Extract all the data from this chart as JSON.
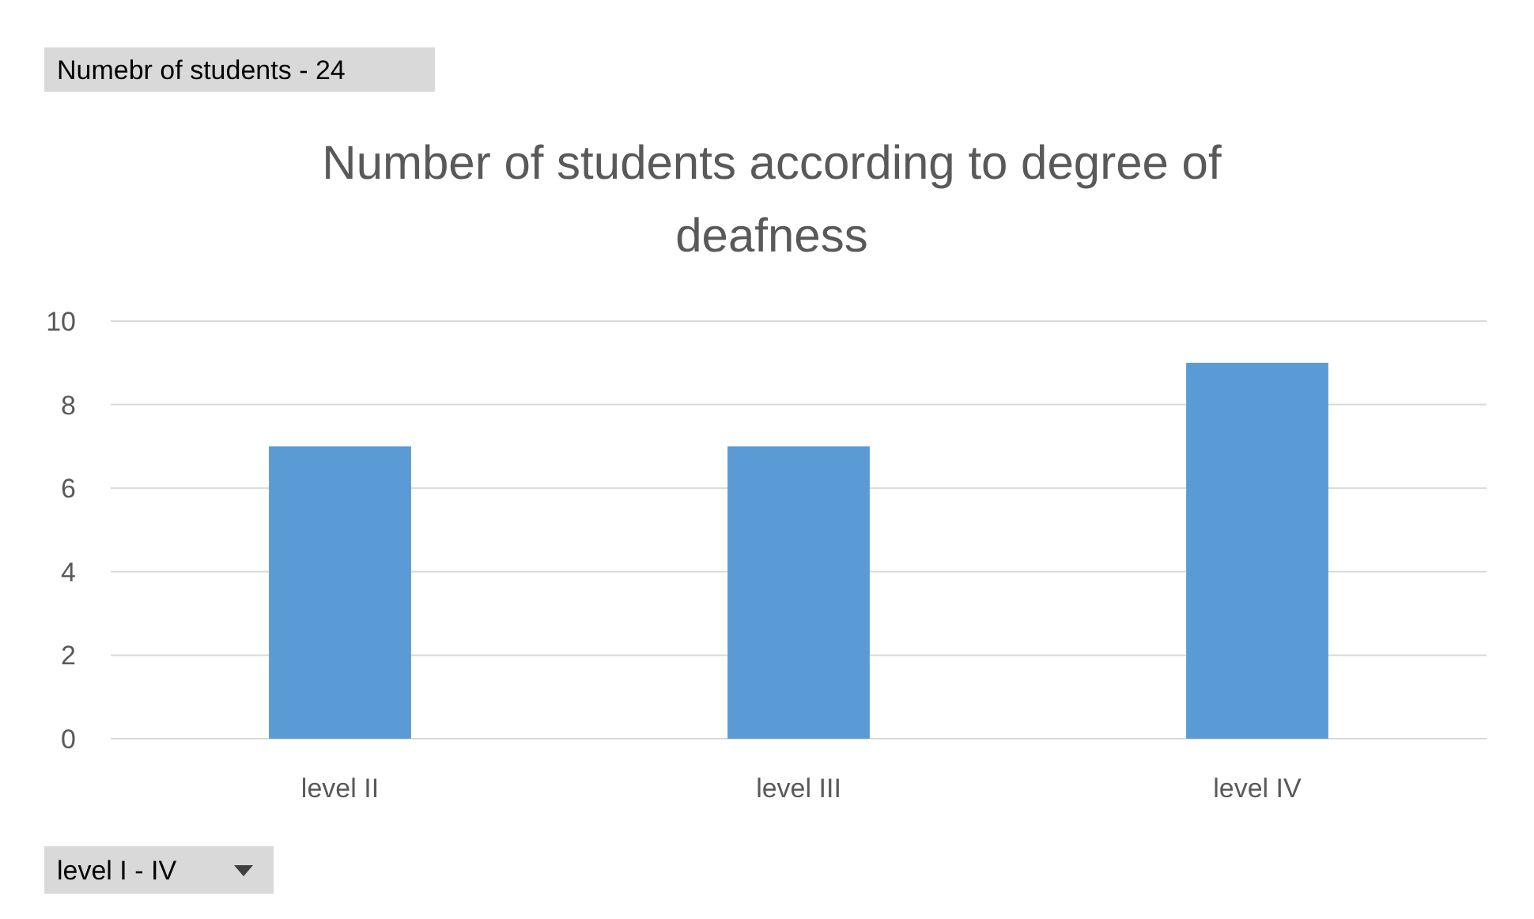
{
  "chart_data": {
    "type": "bar",
    "title": "Number of students according to degree of deafness",
    "categories": [
      "level II",
      "level III",
      "level IV"
    ],
    "values": [
      7,
      7,
      9
    ],
    "color": "#5b9bd5",
    "ylim": [
      0,
      10
    ],
    "yticks": [
      0,
      2,
      4,
      6,
      8,
      10
    ],
    "grid": "y",
    "annotations": [
      "Numebr of students - 24",
      "level I - IV"
    ]
  }
}
